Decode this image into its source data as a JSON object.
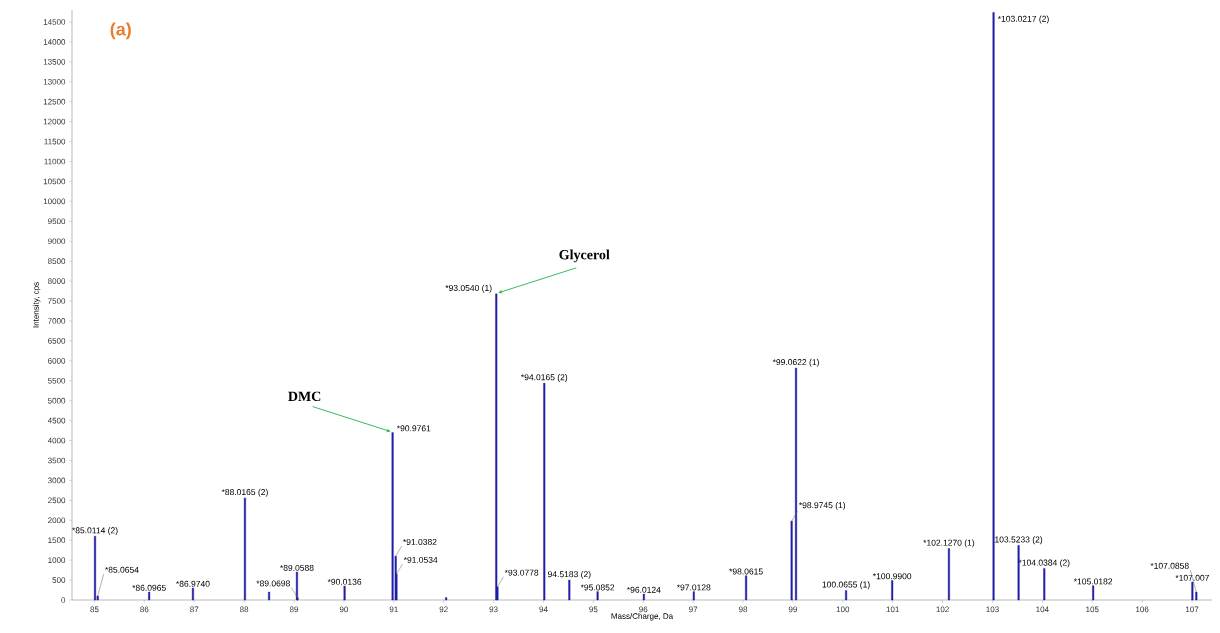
{
  "chart_data": {
    "type": "bar",
    "xlabel": "Mass/Charge, Da",
    "ylabel": "Intensity, cps",
    "color": "#1f1fa6",
    "x": [
      85.0114,
      85.0654,
      86.0965,
      86.974,
      88.0165,
      88.5,
      89.0588,
      89.0698,
      90.0136,
      90.9761,
      91.0382,
      91.0534,
      92.05,
      93.054,
      93.0778,
      94.0165,
      94.5183,
      95.0852,
      96.0124,
      97.0128,
      98.0615,
      98.9745,
      99.0622,
      100.0655,
      100.99,
      102.127,
      103.0217,
      103.5233,
      104.0384,
      105.0182,
      107.007,
      107.0858
    ],
    "values": [
      1600,
      100,
      200,
      300,
      2560,
      200,
      700,
      60,
      350,
      4200,
      1100,
      650,
      60,
      7680,
      330,
      5440,
      500,
      210,
      150,
      210,
      610,
      1980,
      5820,
      240,
      490,
      1290,
      14740,
      1370,
      790,
      360,
      450,
      200
    ],
    "xlim": [
      84.55,
      107.4
    ],
    "ylim": [
      0,
      14800
    ],
    "xticks": [
      85,
      86,
      87,
      88,
      89,
      90,
      91,
      92,
      93,
      94,
      95,
      96,
      97,
      98,
      99,
      100,
      101,
      102,
      103,
      104,
      105,
      106,
      107
    ],
    "yticks": [
      0,
      500,
      1000,
      1500,
      2000,
      2500,
      3000,
      3500,
      4000,
      4500,
      5000,
      5500,
      6000,
      6500,
      7000,
      7500,
      8000,
      8500,
      9000,
      9500,
      10000,
      10500,
      11000,
      11500,
      12000,
      12500,
      13000,
      13500,
      14000,
      14500
    ],
    "annotations": [
      "(a)",
      {
        "text": "DMC",
        "x": 90.9761,
        "y": 4200
      },
      {
        "text": "Glycerol",
        "x": 93.054,
        "y": 7680
      },
      {
        "text": "*85.0114 (2)",
        "x": 85.0114,
        "y": 1600
      },
      {
        "text": "*85.0654",
        "x": 85.0654,
        "y": 100
      },
      {
        "text": "*86.0965",
        "x": 86.0965,
        "y": 200
      },
      {
        "text": "*86.9740",
        "x": 86.974,
        "y": 300
      },
      {
        "text": "*88.0165 (2)",
        "x": 88.0165,
        "y": 2560
      },
      {
        "text": "*89.0588",
        "x": 89.0588,
        "y": 700
      },
      {
        "text": "*89.0698",
        "x": 89.0698,
        "y": 60
      },
      {
        "text": "*90.0136",
        "x": 90.0136,
        "y": 350
      },
      {
        "text": "*90.9761",
        "x": 90.9761,
        "y": 4200
      },
      {
        "text": "*91.0382",
        "x": 91.0382,
        "y": 1100
      },
      {
        "text": "*91.0534",
        "x": 91.0534,
        "y": 650
      },
      {
        "text": "*93.0540 (1)",
        "x": 93.054,
        "y": 7680
      },
      {
        "text": "*93.0778",
        "x": 93.0778,
        "y": 330
      },
      {
        "text": "*94.0165 (2)",
        "x": 94.0165,
        "y": 5440
      },
      {
        "text": "94.5183 (2)",
        "x": 94.5183,
        "y": 500
      },
      {
        "text": "*95.0852",
        "x": 95.0852,
        "y": 210
      },
      {
        "text": "*96.0124",
        "x": 96.0124,
        "y": 150
      },
      {
        "text": "*97.0128",
        "x": 97.0128,
        "y": 210
      },
      {
        "text": "*98.0615",
        "x": 98.0615,
        "y": 610
      },
      {
        "text": "*98.9745 (1)",
        "x": 98.9745,
        "y": 1980
      },
      {
        "text": "*99.0622 (1)",
        "x": 99.0622,
        "y": 5820
      },
      {
        "text": "100.0655 (1)",
        "x": 100.0655,
        "y": 240
      },
      {
        "text": "*100.9900",
        "x": 100.99,
        "y": 490
      },
      {
        "text": "*102.1270 (1)",
        "x": 102.127,
        "y": 1290
      },
      {
        "text": "*103.0217 (2)",
        "x": 103.0217,
        "y": 14740
      },
      {
        "text": "103.5233 (2)",
        "x": 103.5233,
        "y": 1370
      },
      {
        "text": "*104.0384 (2)",
        "x": 104.0384,
        "y": 790
      },
      {
        "text": "*105.0182",
        "x": 105.0182,
        "y": 360
      },
      {
        "text": "*107.007",
        "x": 107.007,
        "y": 450
      },
      {
        "text": "*107.0858",
        "x": 107.0858,
        "y": 200
      }
    ]
  }
}
